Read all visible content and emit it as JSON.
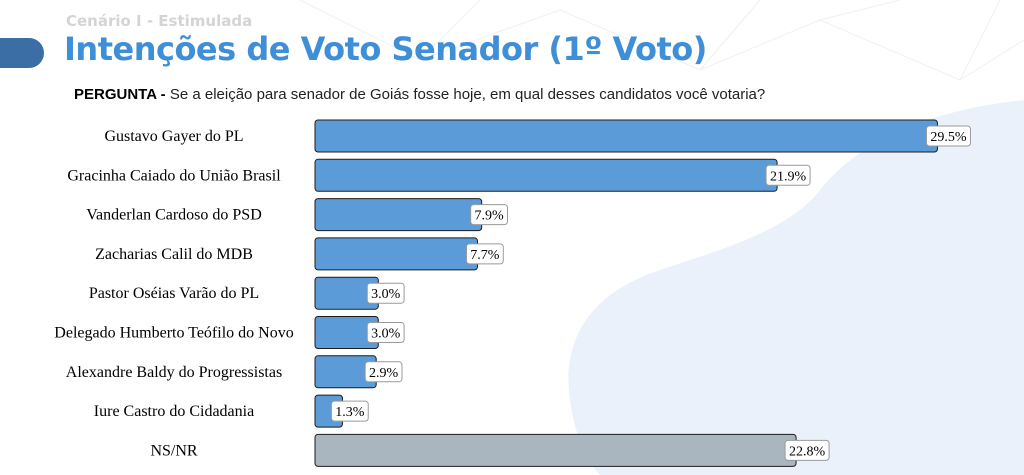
{
  "header": {
    "subtitle": "Cenário I - Estimulada",
    "title": "Intenções de Voto Senador (1º Voto)",
    "question_label": "PERGUNTA -",
    "question_text": "Se a eleição para senador de Goiás fosse hoje, em qual desses candidatos você votaria?"
  },
  "colors": {
    "bar_primary": "#5b9bd8",
    "bar_secondary": "#a9b5bf",
    "title": "#3e8ed8",
    "accent_tab": "#3a6ea5"
  },
  "chart_data": {
    "type": "bar",
    "orientation": "horizontal",
    "categories": [
      "Gustavo Gayer do PL",
      "Gracinha Caiado do União Brasil",
      "Vanderlan Cardoso do PSD",
      "Zacharias Calil do MDB",
      "Pastor Oséias Varão do PL",
      "Delegado Humberto Teófilo do Novo",
      "Alexandre Baldy do Progressistas",
      "Iure Castro do Cidadania",
      "NS/NR"
    ],
    "values": [
      29.5,
      21.9,
      7.9,
      7.7,
      3.0,
      3.0,
      2.9,
      1.3,
      22.8
    ],
    "value_labels": [
      "29.5%",
      "21.9%",
      "7.9%",
      "7.7%",
      "3.0%",
      "3.0%",
      "2.9%",
      "1.3%",
      "22.8%"
    ],
    "bar_colors": [
      "#5b9bd8",
      "#5b9bd8",
      "#5b9bd8",
      "#5b9bd8",
      "#5b9bd8",
      "#5b9bd8",
      "#5b9bd8",
      "#5b9bd8",
      "#a9b5bf"
    ],
    "xlim": [
      0,
      30
    ],
    "grid": false,
    "legend": "none"
  }
}
